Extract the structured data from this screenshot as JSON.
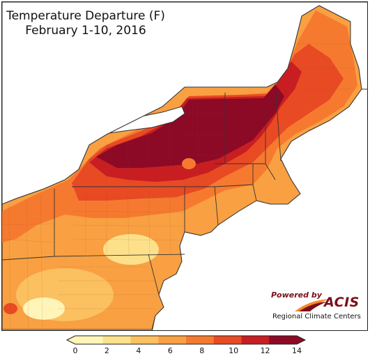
{
  "title": {
    "line1": "Temperature Departure (F)",
    "line2": "February 1-10, 2016"
  },
  "logo": {
    "powered_by": "Powered by",
    "brand": "ACIS",
    "subtitle": "Regional Climate Centers"
  },
  "legend": {
    "ticks": [
      "0",
      "2",
      "4",
      "6",
      "8",
      "10",
      "12",
      "14"
    ],
    "colors": [
      "#fff5b8",
      "#fde08a",
      "#fbc060",
      "#f9a042",
      "#f57a30",
      "#e84a24",
      "#c81e22",
      "#8c0a26"
    ]
  },
  "map": {
    "water": "#ffffff",
    "land_outside": "#ffffff",
    "border": "#333333"
  }
}
